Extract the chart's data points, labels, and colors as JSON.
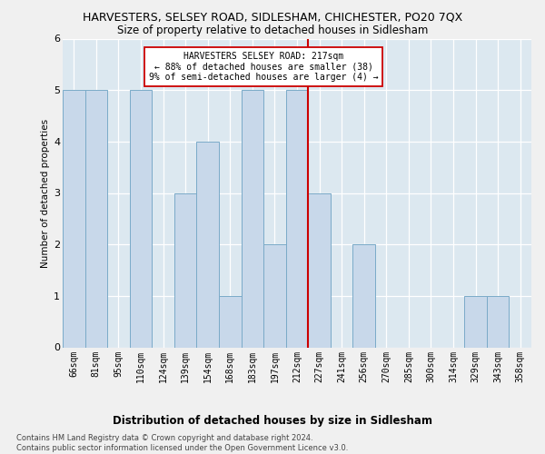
{
  "title": "HARVESTERS, SELSEY ROAD, SIDLESHAM, CHICHESTER, PO20 7QX",
  "subtitle": "Size of property relative to detached houses in Sidlesham",
  "xlabel": "Distribution of detached houses by size in Sidlesham",
  "ylabel": "Number of detached properties",
  "categories": [
    "66sqm",
    "81sqm",
    "95sqm",
    "110sqm",
    "124sqm",
    "139sqm",
    "154sqm",
    "168sqm",
    "183sqm",
    "197sqm",
    "212sqm",
    "227sqm",
    "241sqm",
    "256sqm",
    "270sqm",
    "285sqm",
    "300sqm",
    "314sqm",
    "329sqm",
    "343sqm",
    "358sqm"
  ],
  "values": [
    5,
    5,
    0,
    5,
    0,
    3,
    4,
    1,
    5,
    2,
    5,
    3,
    0,
    2,
    0,
    0,
    0,
    0,
    1,
    1,
    0
  ],
  "bar_color": "#c8d8ea",
  "bar_edge_color": "#7aaac8",
  "highlight_index": 10,
  "highlight_line_color": "#cc0000",
  "ylim": [
    0,
    6
  ],
  "yticks": [
    0,
    1,
    2,
    3,
    4,
    5,
    6
  ],
  "annotation_text": "HARVESTERS SELSEY ROAD: 217sqm\n← 88% of detached houses are smaller (38)\n9% of semi-detached houses are larger (4) →",
  "annotation_box_color": "#ffffff",
  "annotation_box_edge": "#cc0000",
  "footer_text": "Contains HM Land Registry data © Crown copyright and database right 2024.\nContains public sector information licensed under the Open Government Licence v3.0.",
  "background_color": "#dce8f0",
  "fig_background_color": "#f0f0f0",
  "grid_color": "#ffffff",
  "title_fontsize": 9,
  "subtitle_fontsize": 8.5,
  "xlabel_fontsize": 8.5,
  "ylabel_fontsize": 7.5,
  "tick_fontsize": 7,
  "annotation_fontsize": 7,
  "footer_fontsize": 6
}
